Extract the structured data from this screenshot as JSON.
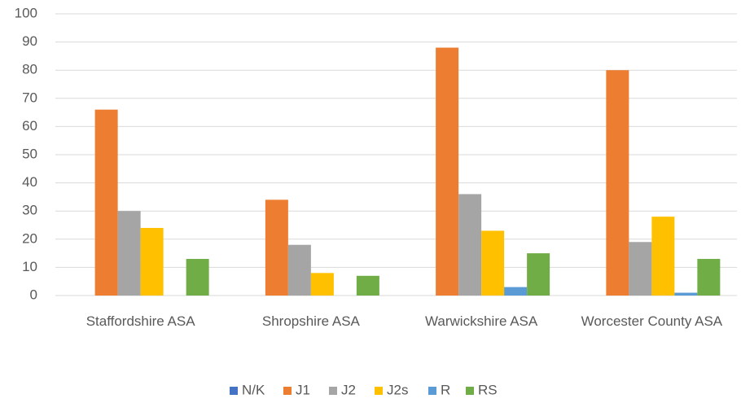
{
  "chart_data": {
    "type": "bar",
    "categories": [
      "Staffordshire ASA",
      "Shropshire ASA",
      "Warwickshire ASA",
      "Worcester County ASA"
    ],
    "series": [
      {
        "name": "N/K",
        "color": "#4472c4",
        "values": [
          0,
          0,
          0,
          0
        ]
      },
      {
        "name": "J1",
        "color": "#ed7d31",
        "values": [
          66,
          34,
          88,
          80
        ]
      },
      {
        "name": "J2",
        "color": "#a5a5a5",
        "values": [
          30,
          18,
          36,
          19
        ]
      },
      {
        "name": "J2s",
        "color": "#ffc000",
        "values": [
          24,
          8,
          23,
          28
        ]
      },
      {
        "name": "R",
        "color": "#5b9bd5",
        "values": [
          0,
          0,
          3,
          1
        ]
      },
      {
        "name": "RS",
        "color": "#70ad47",
        "values": [
          13,
          7,
          15,
          13
        ]
      }
    ],
    "ylim": [
      0,
      100
    ],
    "yticks": [
      0,
      10,
      20,
      30,
      40,
      50,
      60,
      70,
      80,
      90,
      100
    ],
    "grid": true,
    "legend": "bottom"
  }
}
